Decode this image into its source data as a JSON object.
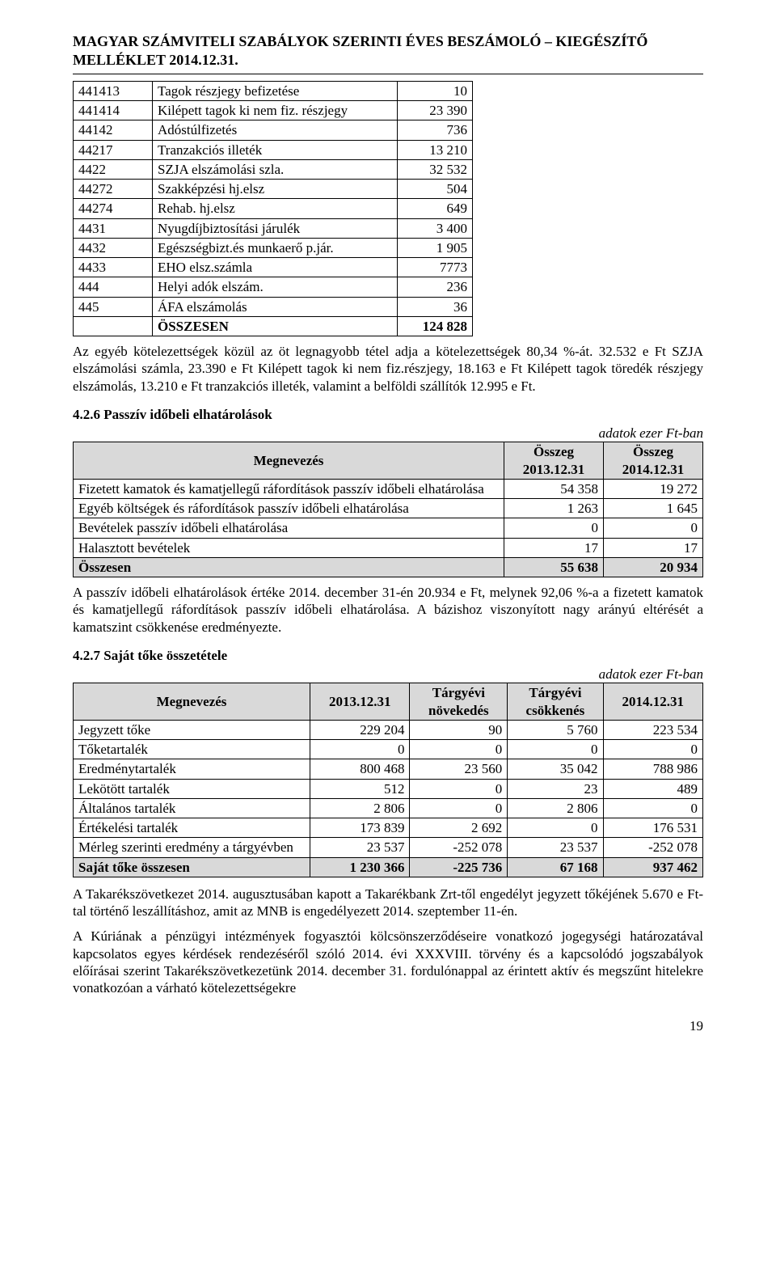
{
  "header": "MAGYAR SZÁMVITELI SZABÁLYOK SZERINTI ÉVES BESZÁMOLÓ – KIEGÉSZÍTŐ MELLÉKLET 2014.12.31.",
  "table1": {
    "rows": [
      [
        "441413",
        "Tagok részjegy befizetése",
        "10"
      ],
      [
        "441414",
        "Kilépett tagok ki nem fiz. részjegy",
        "23 390"
      ],
      [
        "44142",
        "Adóstúlfizetés",
        "736"
      ],
      [
        "44217",
        "Tranzakciós illeték",
        "13 210"
      ],
      [
        "4422",
        "SZJA elszámolási szla.",
        "32 532"
      ],
      [
        "44272",
        "Szakképzési hj.elsz",
        "504"
      ],
      [
        "44274",
        "Rehab. hj.elsz",
        "649"
      ],
      [
        "4431",
        "Nyugdíjbiztosítási járulék",
        "3 400"
      ],
      [
        "4432",
        "Egészségbizt.és munkaerő p.jár.",
        "1 905"
      ],
      [
        "4433",
        "EHO elsz.számla",
        "7773"
      ],
      [
        "444",
        "Helyi adók elszám.",
        "236"
      ],
      [
        "445",
        "ÁFA elszámolás",
        "36"
      ]
    ],
    "total_label": "ÖSSZESEN",
    "total_value": "124 828"
  },
  "para1": "Az egyéb kötelezettségek közül az öt legnagyobb tétel adja a kötelezettségek 80,34 %-át. 32.532 e Ft SZJA elszámolási számla, 23.390 e Ft Kilépett tagok ki nem fiz.részjegy, 18.163 e Ft Kilépett tagok töredék részjegy elszámolás, 13.210 e Ft tranzakciós illeték, valamint a belföldi szállítók 12.995 e Ft.",
  "section426": "4.2.6 Passzív időbeli elhatárolások",
  "unit_note": "adatok ezer Ft-ban",
  "table2": {
    "header": [
      "Megnevezés",
      "Összeg\n2013.12.31",
      "Összeg\n2014.12.31"
    ],
    "rows": [
      [
        "Fizetett kamatok és kamatjellegű ráfordítások passzív időbeli elhatárolása",
        "54 358",
        "19 272"
      ],
      [
        "Egyéb költségek és ráfordítások passzív időbeli elhatárolása",
        "1 263",
        "1 645"
      ],
      [
        "Bevételek passzív időbeli elhatárolása",
        "0",
        "0"
      ],
      [
        "Halasztott bevételek",
        "17",
        "17"
      ]
    ],
    "total": [
      "Összesen",
      "55 638",
      "20 934"
    ]
  },
  "para2": "A passzív időbeli elhatárolások értéke 2014. december 31-én 20.934 e Ft, melynek 92,06 %-a a fizetett kamatok és kamatjellegű ráfordítások passzív időbeli elhatárolása. A bázishoz viszonyított nagy arányú eltérését a kamatszint csökkenése eredményezte.",
  "section427": "4.2.7 Saját tőke összetétele",
  "table3": {
    "header": [
      "Megnevezés",
      "2013.12.31",
      "Tárgyévi\nnövekedés",
      "Tárgyévi\ncsökkenés",
      "2014.12.31"
    ],
    "rows": [
      [
        "Jegyzett tőke",
        "229 204",
        "90",
        "5 760",
        "223 534"
      ],
      [
        "Tőketartalék",
        "0",
        "0",
        "0",
        "0"
      ],
      [
        "Eredménytartalék",
        "800 468",
        "23 560",
        "35 042",
        "788 986"
      ],
      [
        "Lekötött tartalék",
        "512",
        "0",
        "23",
        "489"
      ],
      [
        "Általános tartalék",
        "2 806",
        "0",
        "2 806",
        "0"
      ],
      [
        "Értékelési tartalék",
        "173 839",
        "2 692",
        "0",
        "176 531"
      ],
      [
        "Mérleg szerinti eredmény a tárgyévben",
        "23 537",
        "-252 078",
        "23 537",
        "-252 078"
      ]
    ],
    "total": [
      "Saját tőke összesen",
      "1 230 366",
      "-225 736",
      "67 168",
      "937 462"
    ]
  },
  "para3": "A Takarékszövetkezet 2014. augusztusában kapott a Takarékbank Zrt-től engedélyt jegyzett tőkéjének 5.670 e Ft-tal történő leszállításhoz, amit az MNB is engedélyezett 2014. szeptember 11-én.",
  "para4": "A Kúriának a pénzügyi intézmények fogyasztói kölcsönszerződéseire vonatkozó jogegységi határozatával kapcsolatos egyes kérdések rendezéséről szóló 2014. évi XXXVIII. törvény és a kapcsolódó jogszabályok előírásai szerint Takarékszövetkezetünk 2014. december 31. fordulónappal az érintett aktív és megszűnt hitelekre vonatkozóan a várható kötelezettségekre",
  "page_number": "19"
}
